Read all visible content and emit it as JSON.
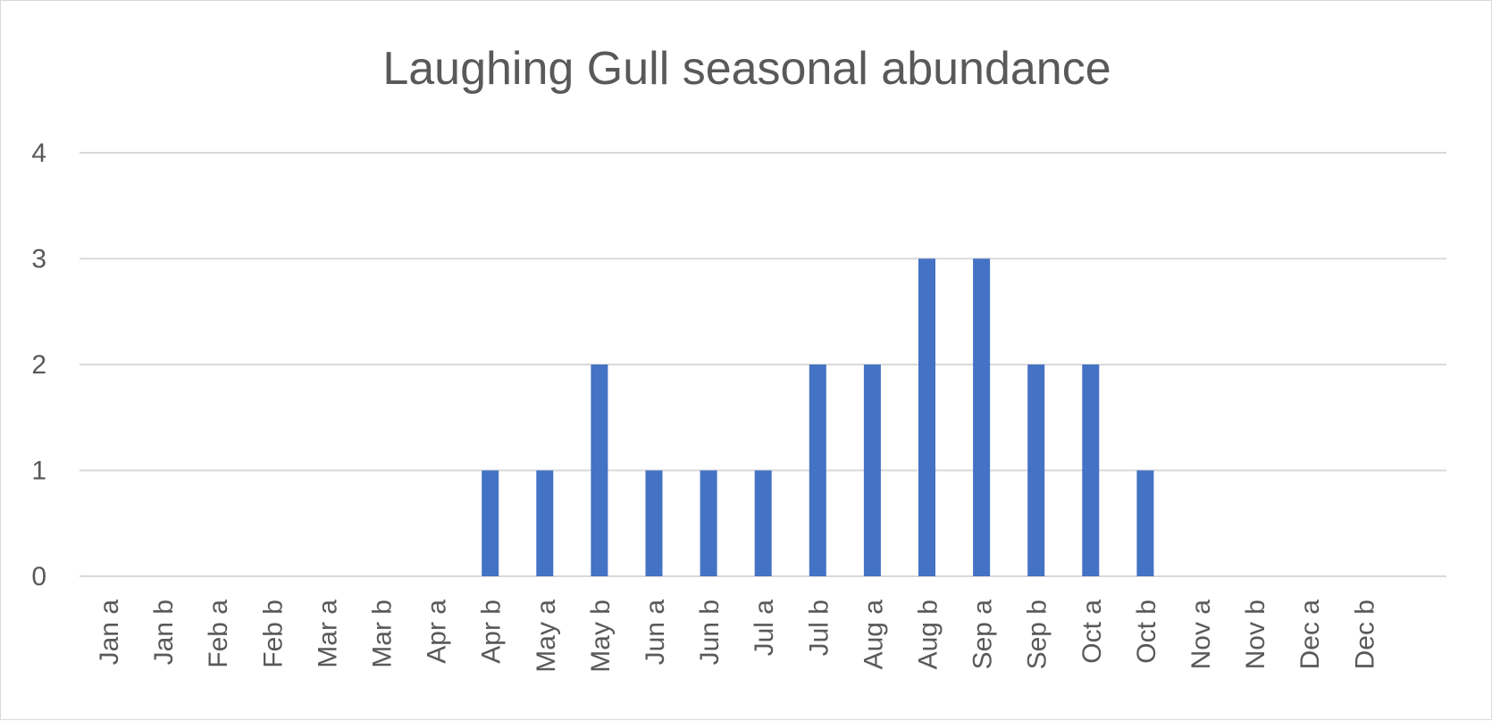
{
  "chart_data": {
    "type": "bar",
    "title": "Laughing Gull seasonal abundance",
    "xlabel": "",
    "ylabel": "",
    "ylim": [
      0,
      4
    ],
    "yticks": [
      0,
      1,
      2,
      3,
      4
    ],
    "grid": true,
    "legend": "none",
    "bar_color": "#4472c4",
    "categories": [
      "Jan a",
      "Jan b",
      "Feb a",
      "Feb b",
      "Mar a",
      "Mar b",
      "Apr a",
      "Apr b",
      "May a",
      "May b",
      "Jun a",
      "Jun b",
      "Jul a",
      "Jul b",
      "Aug a",
      "Aug b",
      "Sep a",
      "Sep b",
      "Oct a",
      "Oct b",
      "Nov a",
      "Nov b",
      "Dec a",
      "Dec b"
    ],
    "values": [
      0,
      0,
      0,
      0,
      0,
      0,
      0,
      1,
      1,
      2,
      1,
      1,
      1,
      2,
      2,
      3,
      3,
      2,
      2,
      1,
      0,
      0,
      0,
      0
    ]
  }
}
